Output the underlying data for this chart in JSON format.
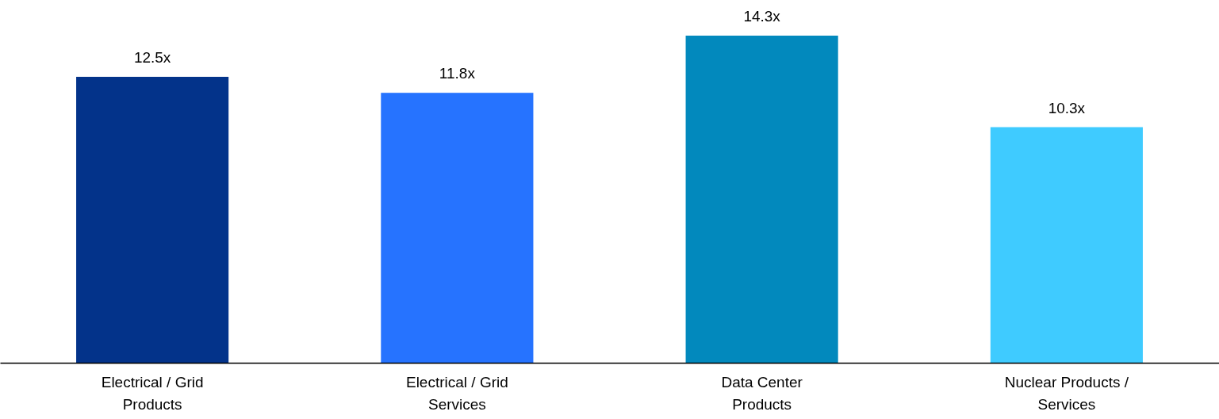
{
  "chart_data": {
    "type": "bar",
    "categories": [
      "Electrical / Grid Products",
      "Electrical / Grid Services",
      "Data Center Products",
      "Nuclear Products / Services"
    ],
    "values": [
      12.5,
      11.8,
      14.3,
      10.3
    ],
    "colors": [
      "#03338a",
      "#2673ff",
      "#0289bd",
      "#3fcbff"
    ],
    "value_labels": [
      "12.5x",
      "11.8x",
      "14.3x",
      "10.3x"
    ]
  }
}
